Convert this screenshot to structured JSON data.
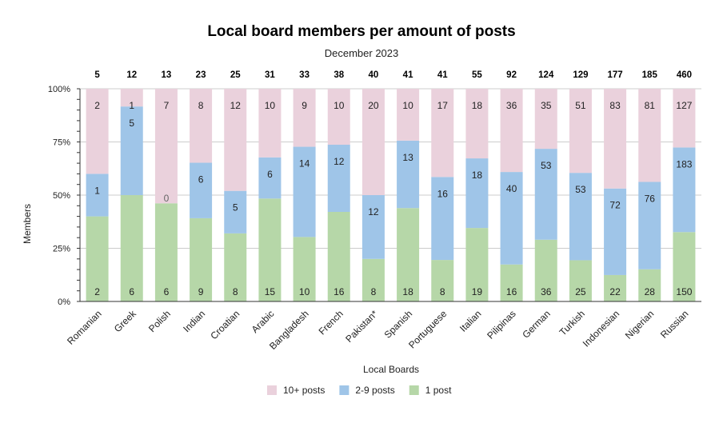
{
  "chart_data": {
    "type": "bar",
    "stacked": "percent",
    "title": "Local board members per amount of posts",
    "subtitle": "December 2023",
    "xlabel": "Local Boards",
    "ylabel": "Members",
    "categories": [
      "Romanian",
      "Greek",
      "Polish",
      "Indian",
      "Croatian",
      "Arabic",
      "Bangladesh",
      "French",
      "Pakistan*",
      "Spanish",
      "Portuguese",
      "Italian",
      "Pilipinas",
      "German",
      "Turkish",
      "Indonesian",
      "Nigerian",
      "Russian"
    ],
    "totals": [
      "5",
      "12",
      "13",
      "23",
      "25",
      "31",
      "33",
      "38",
      "40",
      "41",
      "41",
      "55",
      "92",
      "124",
      "129",
      "177",
      "185",
      "460"
    ],
    "yticks": [
      "0%",
      "25%",
      "50%",
      "75%",
      "100%"
    ],
    "ylim": [
      0,
      100
    ],
    "grid": true,
    "legend_position": "bottom",
    "series": [
      {
        "name": "1 post",
        "color": "#b6d7a8",
        "values": [
          2,
          6,
          6,
          9,
          8,
          15,
          10,
          16,
          8,
          18,
          8,
          19,
          16,
          36,
          25,
          22,
          28,
          150
        ]
      },
      {
        "name": "2-9 posts",
        "color": "#9fc5e8",
        "values": [
          1,
          5,
          0,
          6,
          5,
          6,
          14,
          12,
          12,
          13,
          16,
          18,
          40,
          53,
          53,
          72,
          76,
          183
        ]
      },
      {
        "name": "10+ posts",
        "color": "#ead1dc",
        "values": [
          2,
          1,
          7,
          8,
          12,
          10,
          9,
          10,
          20,
          10,
          17,
          18,
          36,
          35,
          51,
          83,
          81,
          127
        ]
      }
    ],
    "data_labels": [
      [
        "2",
        "6",
        "6",
        "9",
        "8",
        "15",
        "10",
        "16",
        "8",
        "18",
        "8",
        "19",
        "16",
        "36",
        "25",
        "22",
        "28",
        "150"
      ],
      [
        "1",
        "5",
        "0",
        "6",
        "5",
        "6",
        "14",
        "12",
        "12",
        "13",
        "16",
        "18",
        "40",
        "53",
        "53",
        "72",
        "76",
        "183"
      ],
      [
        "2",
        "1",
        "7",
        "8",
        "12",
        "10",
        "9",
        "10",
        "20",
        "10",
        "17",
        "18",
        "36",
        "35",
        "51",
        "83",
        "81",
        "127"
      ]
    ],
    "legend": [
      {
        "name": "10+ posts",
        "color": "#ead1dc"
      },
      {
        "name": "2-9 posts",
        "color": "#9fc5e8"
      },
      {
        "name": "1 post",
        "color": "#b6d7a8"
      }
    ]
  }
}
